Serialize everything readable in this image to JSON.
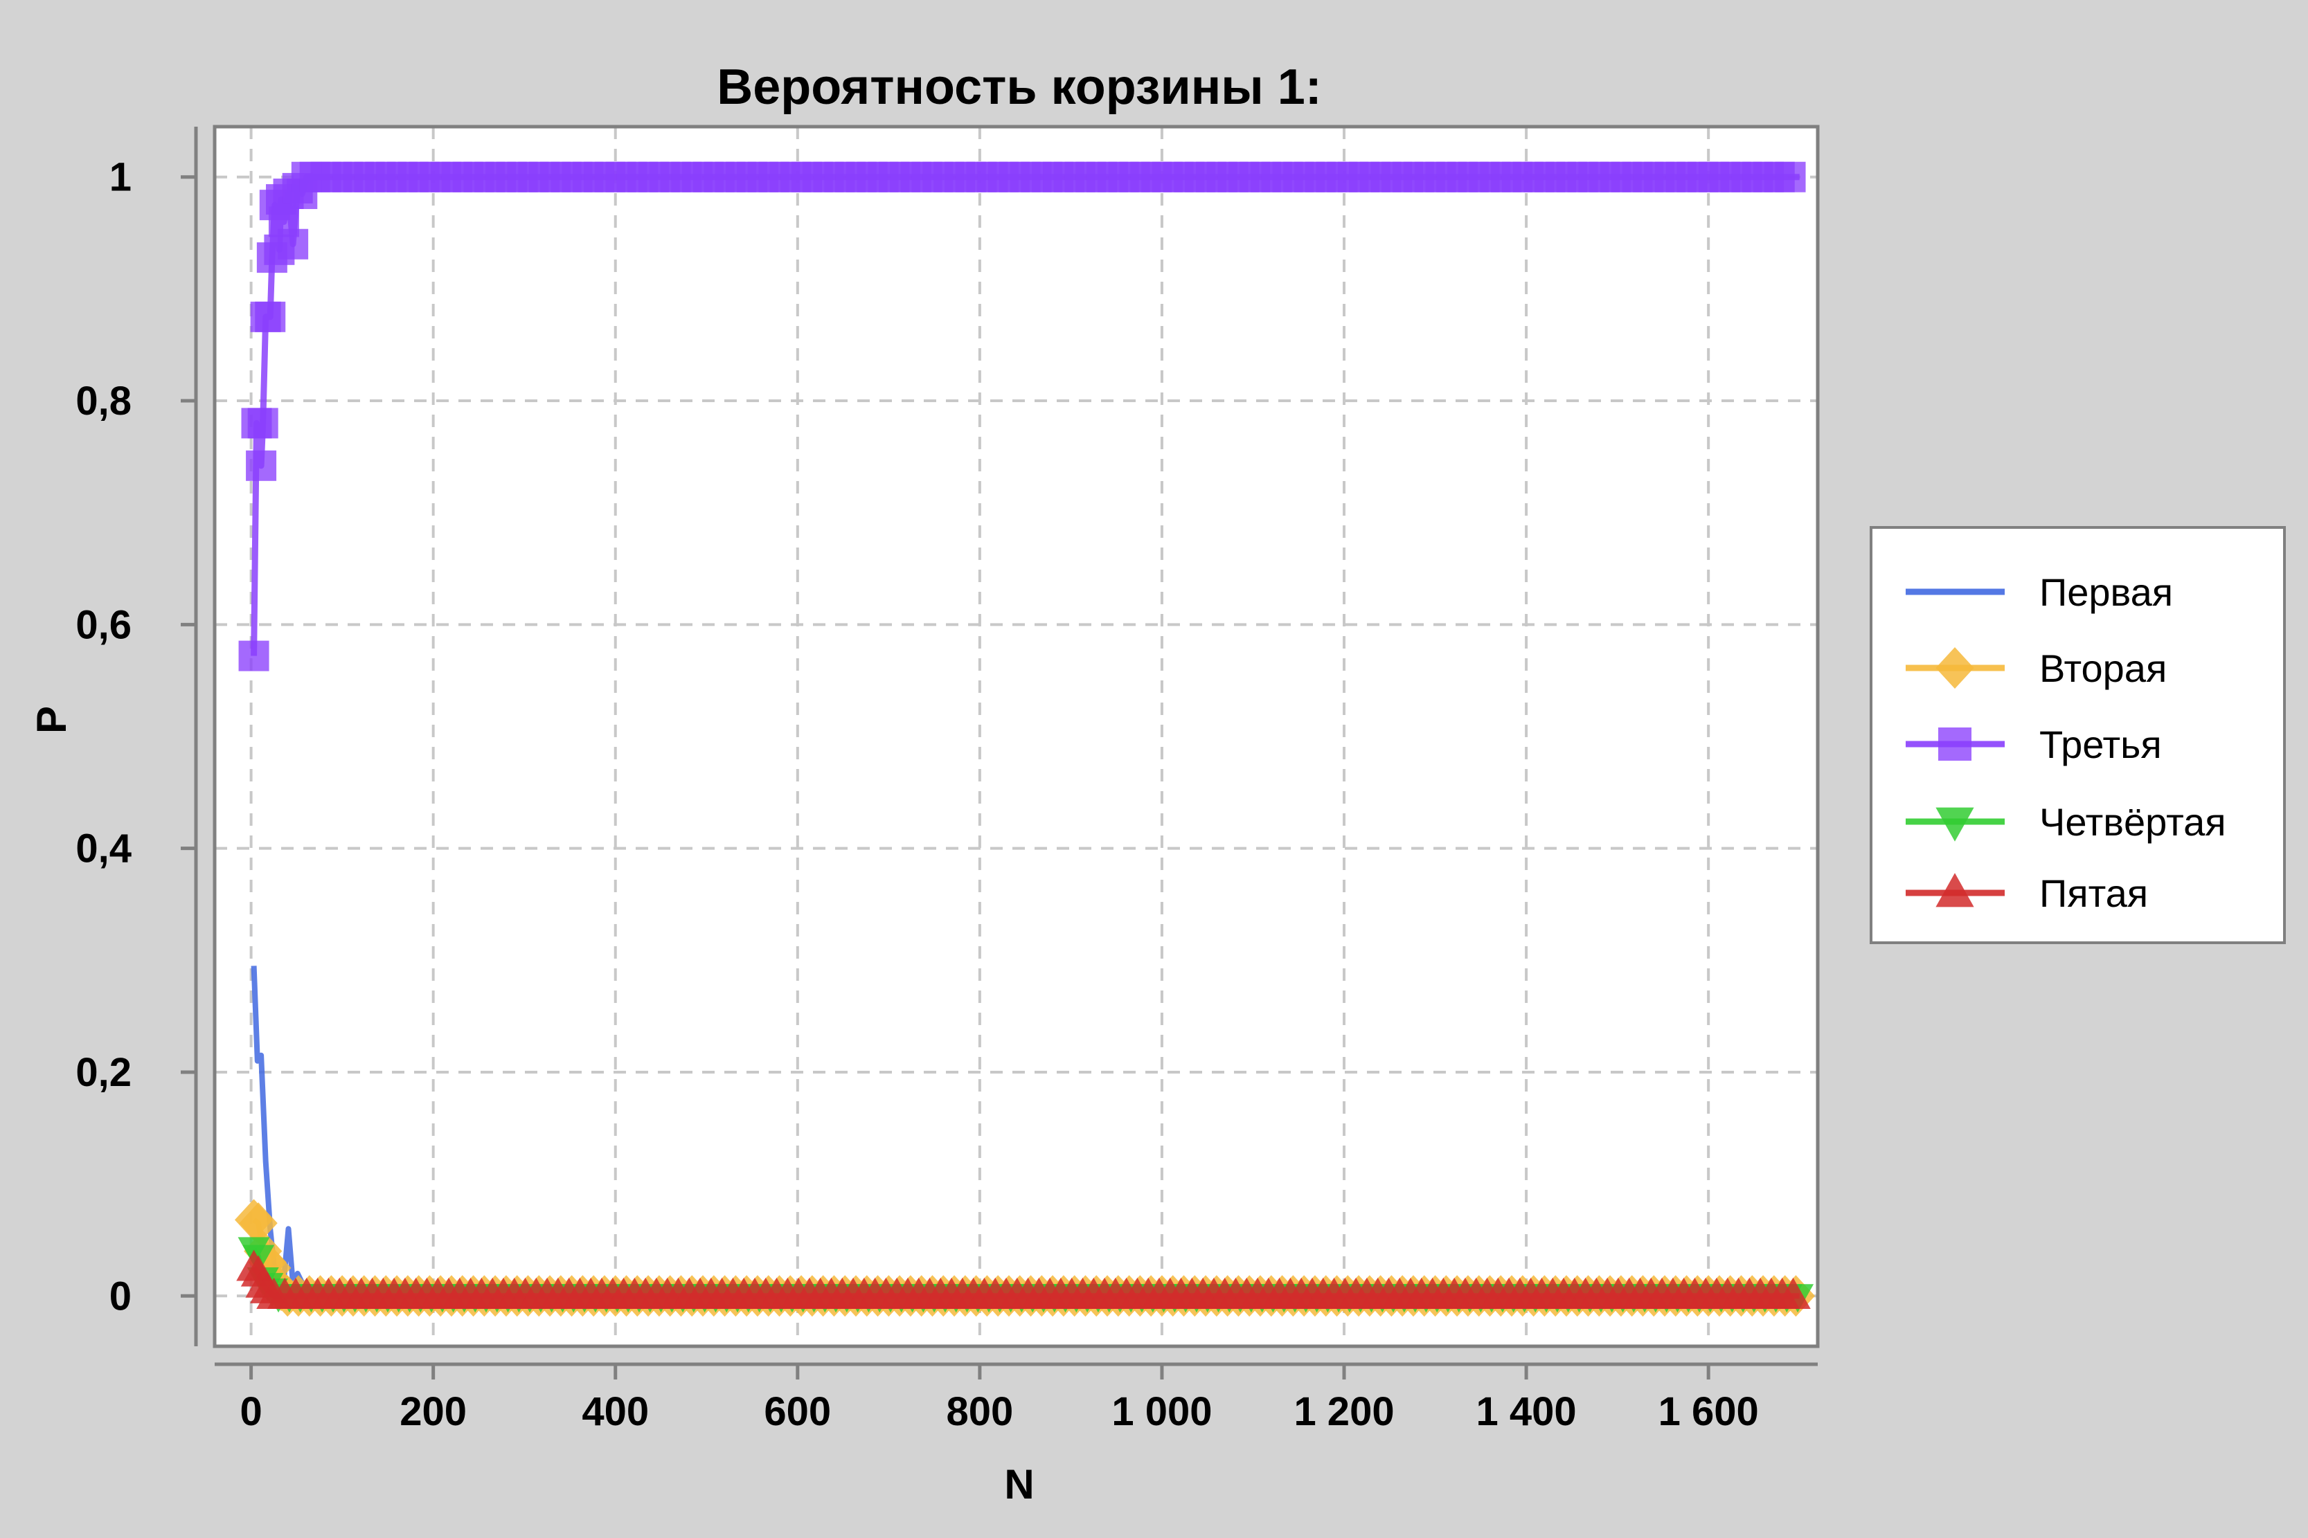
{
  "chart_data": {
    "type": "line",
    "title": "Вероятность корзины 1:",
    "xlabel": "N",
    "ylabel": "P",
    "xlim": [
      -40,
      1720
    ],
    "ylim": [
      -0.045,
      1.045
    ],
    "x_ticks": [
      0,
      200,
      400,
      600,
      800,
      1000,
      1200,
      1400,
      1600
    ],
    "x_tick_labels": [
      "0",
      "200",
      "400",
      "600",
      "800",
      "1 000",
      "1 200",
      "1 400",
      "1 600"
    ],
    "y_ticks": [
      0,
      0.2,
      0.4,
      0.6,
      0.8,
      1
    ],
    "y_tick_labels": [
      "0",
      "0,2",
      "0,4",
      "0,6",
      "0,8",
      "1"
    ],
    "grid": true,
    "legend_position": "right",
    "x_end": 1700,
    "series": [
      {
        "name": "Первая",
        "color": "#4169e1",
        "marker": "none",
        "points": [
          [
            3,
            0.295
          ],
          [
            7,
            0.21
          ],
          [
            11,
            0.215
          ],
          [
            16,
            0.12
          ],
          [
            21,
            0.06
          ],
          [
            26,
            0.02
          ],
          [
            31,
            0.01
          ],
          [
            36,
            0.015
          ],
          [
            41,
            0.06
          ],
          [
            46,
            0.01
          ],
          [
            51,
            0.02
          ],
          [
            60,
            0.005
          ],
          [
            80,
            0.0
          ]
        ]
      },
      {
        "name": "Вторая",
        "color": "#f6b93b",
        "marker": "diamond",
        "points": [
          [
            3,
            0.068
          ],
          [
            8,
            0.065
          ],
          [
            13,
            0.04
          ],
          [
            18,
            0.03
          ],
          [
            23,
            0.025
          ],
          [
            28,
            0.01
          ],
          [
            33,
            0.005
          ],
          [
            40,
            0.0
          ]
        ]
      },
      {
        "name": "Третья",
        "color": "#8a3ffc",
        "marker": "square",
        "points": [
          [
            3,
            0.572
          ],
          [
            6,
            0.78
          ],
          [
            11,
            0.742
          ],
          [
            13,
            0.78
          ],
          [
            16,
            0.875
          ],
          [
            21,
            0.875
          ],
          [
            23,
            0.928
          ],
          [
            26,
            0.975
          ],
          [
            31,
            0.935
          ],
          [
            33,
            0.98
          ],
          [
            36,
            0.96
          ],
          [
            41,
            0.985
          ],
          [
            46,
            0.94
          ],
          [
            51,
            0.99
          ],
          [
            56,
            0.985
          ],
          [
            61,
            1.0
          ],
          [
            70,
            1.0
          ]
        ]
      },
      {
        "name": "Четвёртая",
        "color": "#32cd32",
        "marker": "triangle-down",
        "points": [
          [
            3,
            0.042
          ],
          [
            8,
            0.035
          ],
          [
            13,
            0.015
          ],
          [
            18,
            0.01
          ],
          [
            23,
            0.005
          ],
          [
            30,
            0.0
          ]
        ]
      },
      {
        "name": "Пятая",
        "color": "#d22b2b",
        "marker": "triangle-up",
        "points": [
          [
            3,
            0.025
          ],
          [
            8,
            0.02
          ],
          [
            13,
            0.01
          ],
          [
            18,
            0.005
          ],
          [
            25,
            0.0
          ]
        ]
      }
    ]
  }
}
